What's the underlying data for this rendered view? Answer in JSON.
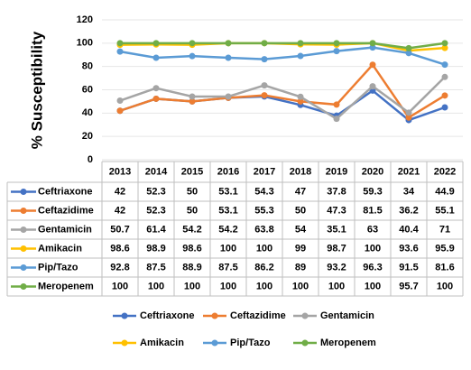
{
  "chart_data": {
    "type": "line",
    "ylabel": "% Susceptibility",
    "categories": [
      "2013",
      "2014",
      "2015",
      "2016",
      "2017",
      "2018",
      "2019",
      "2020",
      "2021",
      "2022"
    ],
    "series": [
      {
        "name": "Ceftriaxone",
        "color": "#4472c4",
        "values": [
          42,
          52.3,
          50,
          53.1,
          54.3,
          47,
          37.8,
          59.3,
          34,
          44.9
        ]
      },
      {
        "name": "Ceftazidime",
        "color": "#ed7d31",
        "values": [
          42,
          52.3,
          50,
          53.1,
          55.3,
          50,
          47.3,
          81.5,
          36.2,
          55.1
        ]
      },
      {
        "name": "Gentamicin",
        "color": "#a5a5a5",
        "values": [
          50.7,
          61.4,
          54.2,
          54.2,
          63.8,
          54,
          35.1,
          63,
          40.4,
          71
        ]
      },
      {
        "name": "Amikacin",
        "color": "#ffc000",
        "values": [
          98.6,
          98.9,
          98.6,
          100,
          100,
          99,
          98.7,
          100,
          93.6,
          95.9
        ]
      },
      {
        "name": "Pip/Tazo",
        "color": "#5b9bd5",
        "values": [
          92.8,
          87.5,
          88.9,
          87.5,
          86.2,
          89,
          93.2,
          96.3,
          91.5,
          81.6
        ]
      },
      {
        "name": "Meropenem",
        "color": "#70ad47",
        "values": [
          100,
          100,
          100,
          100,
          100,
          100,
          100,
          100,
          95.7,
          100
        ]
      }
    ],
    "ylim": [
      0,
      120
    ],
    "yticks": [
      0,
      20,
      40,
      60,
      80,
      100,
      120
    ],
    "grid": true,
    "legend": "bottom",
    "data_table": true
  }
}
